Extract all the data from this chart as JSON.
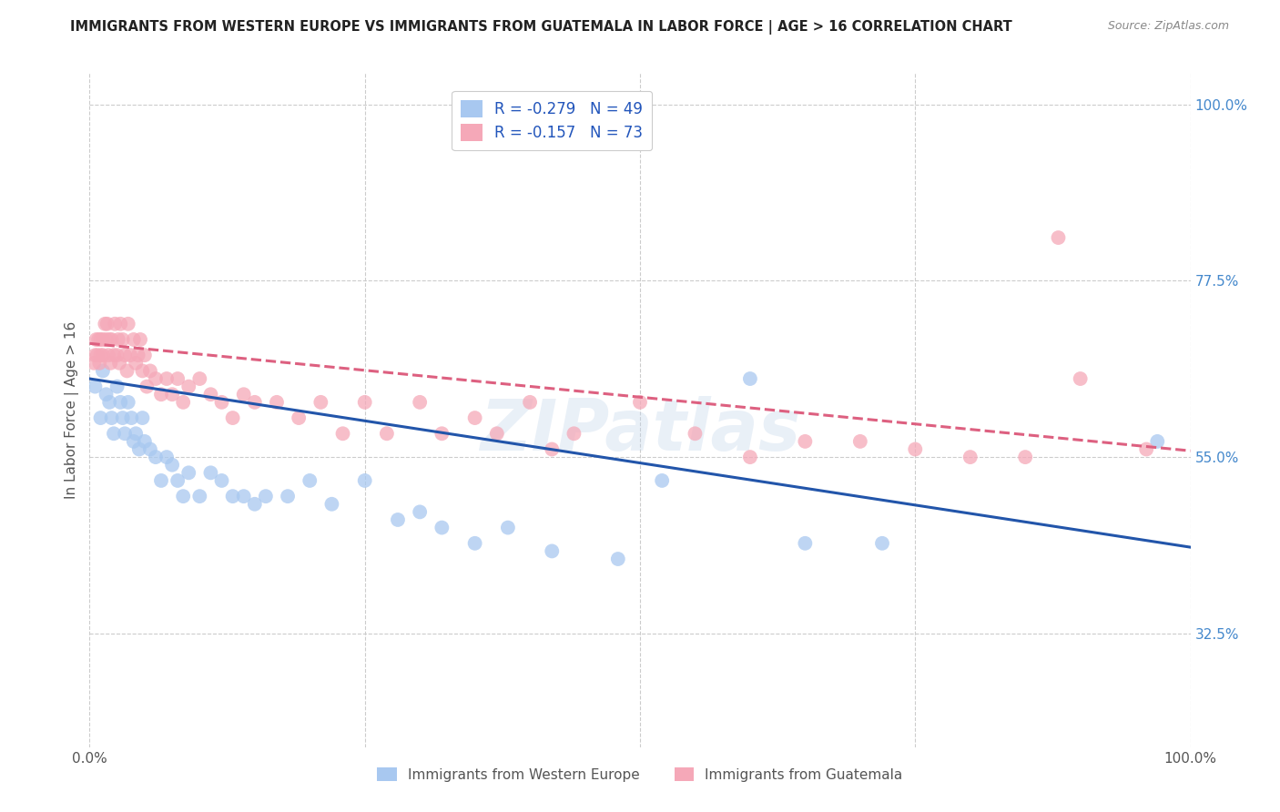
{
  "title": "IMMIGRANTS FROM WESTERN EUROPE VS IMMIGRANTS FROM GUATEMALA IN LABOR FORCE | AGE > 16 CORRELATION CHART",
  "source": "Source: ZipAtlas.com",
  "ylabel": "In Labor Force | Age > 16",
  "xlim": [
    0.0,
    1.0
  ],
  "ylim": [
    0.18,
    1.04
  ],
  "yticks": [
    0.325,
    0.55,
    0.775,
    1.0
  ],
  "ytick_labels": [
    "32.5%",
    "55.0%",
    "77.5%",
    "100.0%"
  ],
  "xtick_labels": [
    "0.0%",
    "100.0%"
  ],
  "legend_label1": "R = -0.279   N = 49",
  "legend_label2": "R = -0.157   N = 73",
  "legend_series1": "Immigrants from Western Europe",
  "legend_series2": "Immigrants from Guatemala",
  "color_blue": "#a8c8f0",
  "color_pink": "#f5a8b8",
  "line_color_blue": "#2255aa",
  "line_color_pink": "#dd6080",
  "background_color": "#ffffff",
  "grid_color": "#cccccc",
  "title_color": "#222222",
  "watermark": "ZIPatlas",
  "blue_scatter_x": [
    0.005,
    0.01,
    0.012,
    0.015,
    0.018,
    0.02,
    0.022,
    0.025,
    0.028,
    0.03,
    0.032,
    0.035,
    0.038,
    0.04,
    0.042,
    0.045,
    0.048,
    0.05,
    0.055,
    0.06,
    0.065,
    0.07,
    0.075,
    0.08,
    0.085,
    0.09,
    0.1,
    0.11,
    0.12,
    0.13,
    0.14,
    0.15,
    0.16,
    0.18,
    0.2,
    0.22,
    0.25,
    0.28,
    0.3,
    0.32,
    0.35,
    0.38,
    0.42,
    0.48,
    0.52,
    0.6,
    0.65,
    0.72,
    0.97
  ],
  "blue_scatter_y": [
    0.64,
    0.6,
    0.66,
    0.63,
    0.62,
    0.6,
    0.58,
    0.64,
    0.62,
    0.6,
    0.58,
    0.62,
    0.6,
    0.57,
    0.58,
    0.56,
    0.6,
    0.57,
    0.56,
    0.55,
    0.52,
    0.55,
    0.54,
    0.52,
    0.5,
    0.53,
    0.5,
    0.53,
    0.52,
    0.5,
    0.5,
    0.49,
    0.5,
    0.5,
    0.52,
    0.49,
    0.52,
    0.47,
    0.48,
    0.46,
    0.44,
    0.46,
    0.43,
    0.42,
    0.52,
    0.65,
    0.44,
    0.44,
    0.57
  ],
  "pink_scatter_x": [
    0.004,
    0.005,
    0.006,
    0.007,
    0.008,
    0.009,
    0.01,
    0.01,
    0.012,
    0.012,
    0.014,
    0.015,
    0.016,
    0.017,
    0.018,
    0.019,
    0.02,
    0.022,
    0.023,
    0.025,
    0.026,
    0.027,
    0.028,
    0.03,
    0.032,
    0.034,
    0.035,
    0.037,
    0.04,
    0.042,
    0.044,
    0.046,
    0.048,
    0.05,
    0.052,
    0.055,
    0.06,
    0.065,
    0.07,
    0.075,
    0.08,
    0.085,
    0.09,
    0.1,
    0.11,
    0.12,
    0.13,
    0.14,
    0.15,
    0.17,
    0.19,
    0.21,
    0.23,
    0.25,
    0.27,
    0.3,
    0.32,
    0.35,
    0.37,
    0.4,
    0.42,
    0.44,
    0.5,
    0.55,
    0.6,
    0.65,
    0.7,
    0.75,
    0.8,
    0.85,
    0.88,
    0.9,
    0.96
  ],
  "pink_scatter_y": [
    0.67,
    0.68,
    0.7,
    0.68,
    0.7,
    0.67,
    0.7,
    0.68,
    0.7,
    0.68,
    0.72,
    0.7,
    0.72,
    0.68,
    0.7,
    0.67,
    0.7,
    0.68,
    0.72,
    0.68,
    0.7,
    0.67,
    0.72,
    0.7,
    0.68,
    0.66,
    0.72,
    0.68,
    0.7,
    0.67,
    0.68,
    0.7,
    0.66,
    0.68,
    0.64,
    0.66,
    0.65,
    0.63,
    0.65,
    0.63,
    0.65,
    0.62,
    0.64,
    0.65,
    0.63,
    0.62,
    0.6,
    0.63,
    0.62,
    0.62,
    0.6,
    0.62,
    0.58,
    0.62,
    0.58,
    0.62,
    0.58,
    0.6,
    0.58,
    0.62,
    0.56,
    0.58,
    0.62,
    0.58,
    0.55,
    0.57,
    0.57,
    0.56,
    0.55,
    0.55,
    0.83,
    0.65,
    0.56
  ],
  "blue_trend_y_start": 0.65,
  "blue_trend_y_end": 0.435,
  "pink_trend_y_start": 0.695,
  "pink_trend_y_end": 0.558
}
